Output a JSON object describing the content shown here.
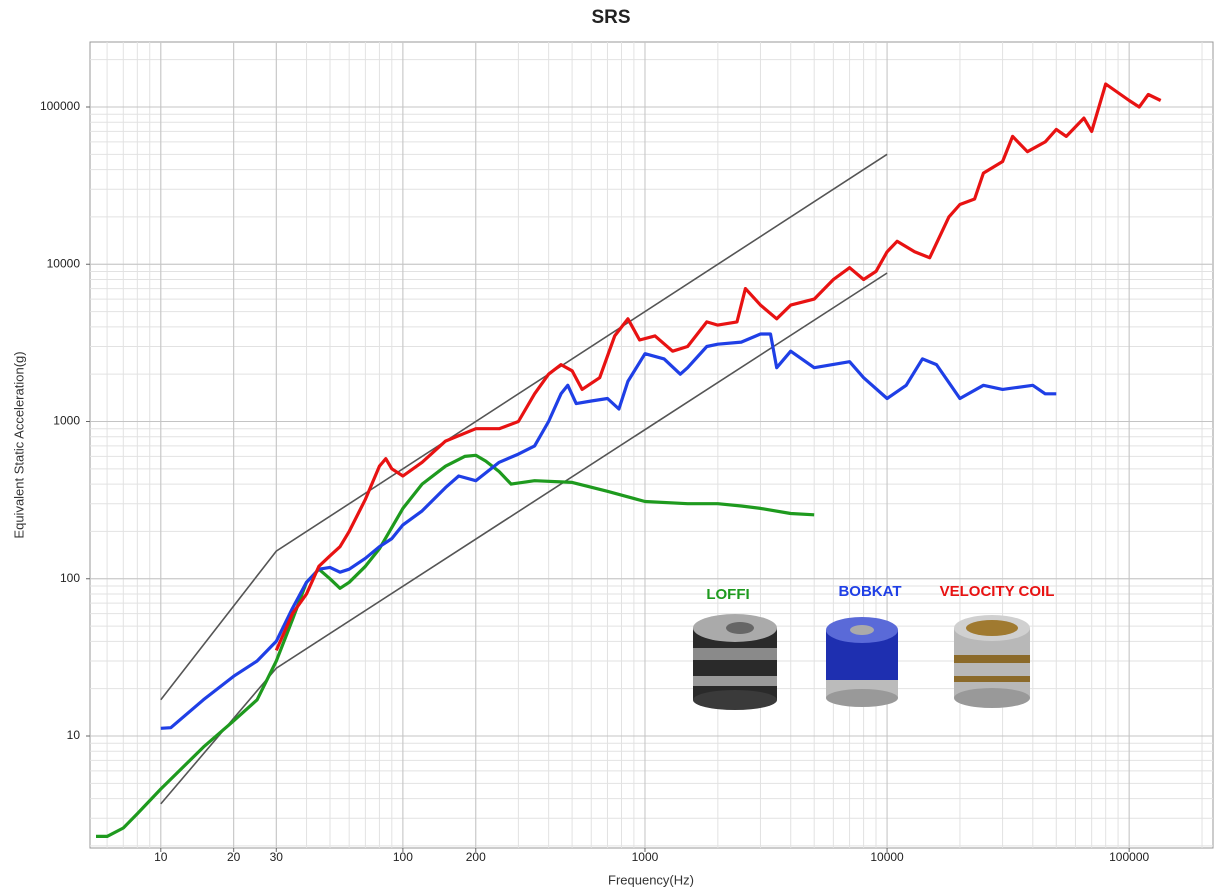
{
  "chart_data": {
    "type": "line",
    "title": "SRS",
    "x_label": "Frequency(Hz)",
    "y_label": "Equivalent Static Acceleration(g)",
    "xscale": "log",
    "yscale": "log",
    "grid": true,
    "xlim": [
      5.1,
      222000
    ],
    "ylim": [
      1.94,
      259000
    ],
    "xticks": [
      10,
      20,
      30,
      100,
      200,
      1000,
      10000,
      100000
    ],
    "yticks": [
      10,
      100,
      1000,
      10000,
      100000
    ],
    "series": [
      {
        "name": "LOFFI",
        "color": "#1e9a1e",
        "x": [
          5.4,
          6,
          7,
          8,
          10,
          15,
          20,
          25,
          30,
          35,
          40,
          45,
          50,
          55,
          60,
          70,
          80,
          100,
          120,
          150,
          180,
          200,
          220,
          250,
          280,
          350,
          500,
          700,
          1000,
          1500,
          2000,
          2500,
          3000,
          4000,
          5000
        ],
        "values": [
          2.3,
          2.3,
          2.6,
          3.2,
          4.6,
          8.5,
          12.5,
          17,
          30,
          55,
          95,
          115,
          100,
          87,
          95,
          120,
          155,
          280,
          400,
          520,
          600,
          610,
          560,
          480,
          400,
          420,
          410,
          360,
          310,
          300,
          300,
          290,
          280,
          260,
          255
        ]
      },
      {
        "name": "BOBKAT",
        "color": "#1f3fe6",
        "x": [
          10,
          11,
          15,
          20,
          25,
          30,
          35,
          40,
          45,
          50,
          55,
          60,
          70,
          80,
          90,
          100,
          120,
          150,
          170,
          200,
          250,
          300,
          350,
          400,
          450,
          480,
          520,
          600,
          700,
          780,
          850,
          1000,
          1200,
          1400,
          1500,
          1800,
          2000,
          2500,
          3000,
          3300,
          3500,
          4000,
          5000,
          7000,
          8000,
          10000,
          12000,
          14000,
          16000,
          20000,
          25000,
          30000,
          40000,
          45000,
          50000
        ],
        "values": [
          11.2,
          11.3,
          17,
          24,
          30,
          40,
          65,
          95,
          115,
          118,
          110,
          115,
          135,
          160,
          180,
          220,
          270,
          380,
          450,
          420,
          550,
          620,
          700,
          1000,
          1500,
          1700,
          1300,
          1350,
          1400,
          1200,
          1800,
          2700,
          2500,
          2000,
          2200,
          3000,
          3100,
          3200,
          3600,
          3600,
          2200,
          2800,
          2200,
          2400,
          1900,
          1400,
          1700,
          2500,
          2300,
          1400,
          1700,
          1600,
          1700,
          1500,
          1500
        ]
      },
      {
        "name": "VELOCITY COIL",
        "color": "#e81212",
        "x": [
          30,
          35,
          40,
          45,
          50,
          55,
          60,
          70,
          80,
          85,
          90,
          100,
          120,
          150,
          200,
          250,
          300,
          350,
          400,
          450,
          500,
          550,
          650,
          750,
          850,
          950,
          1100,
          1300,
          1500,
          1800,
          2000,
          2400,
          2600,
          3000,
          3500,
          4000,
          5000,
          6000,
          7000,
          8000,
          9000,
          10000,
          11000,
          13000,
          15000,
          18000,
          20000,
          23000,
          25000,
          30000,
          33000,
          38000,
          45000,
          50000,
          55000,
          65000,
          70000,
          80000,
          100000,
          110000,
          120000,
          135000
        ],
        "values": [
          35,
          60,
          80,
          120,
          140,
          160,
          200,
          320,
          520,
          580,
          500,
          450,
          550,
          750,
          900,
          900,
          1000,
          1500,
          2000,
          2300,
          2100,
          1600,
          1900,
          3500,
          4500,
          3300,
          3500,
          2800,
          3000,
          4300,
          4100,
          4300,
          7000,
          5500,
          4500,
          5500,
          6000,
          8000,
          9500,
          8000,
          9000,
          12000,
          14000,
          12000,
          11000,
          20000,
          24000,
          26000,
          38000,
          45000,
          65000,
          52000,
          60000,
          72000,
          65000,
          85000,
          70000,
          140000,
          110000,
          100000,
          120000,
          110000
        ]
      }
    ],
    "reference_lines": [
      {
        "color": "#555555",
        "x": [
          10,
          30,
          10000
        ],
        "values": [
          17,
          150,
          50000
        ]
      },
      {
        "color": "#555555",
        "x": [
          10,
          30,
          10000
        ],
        "values": [
          3.7,
          27,
          8800
        ]
      }
    ]
  }
}
